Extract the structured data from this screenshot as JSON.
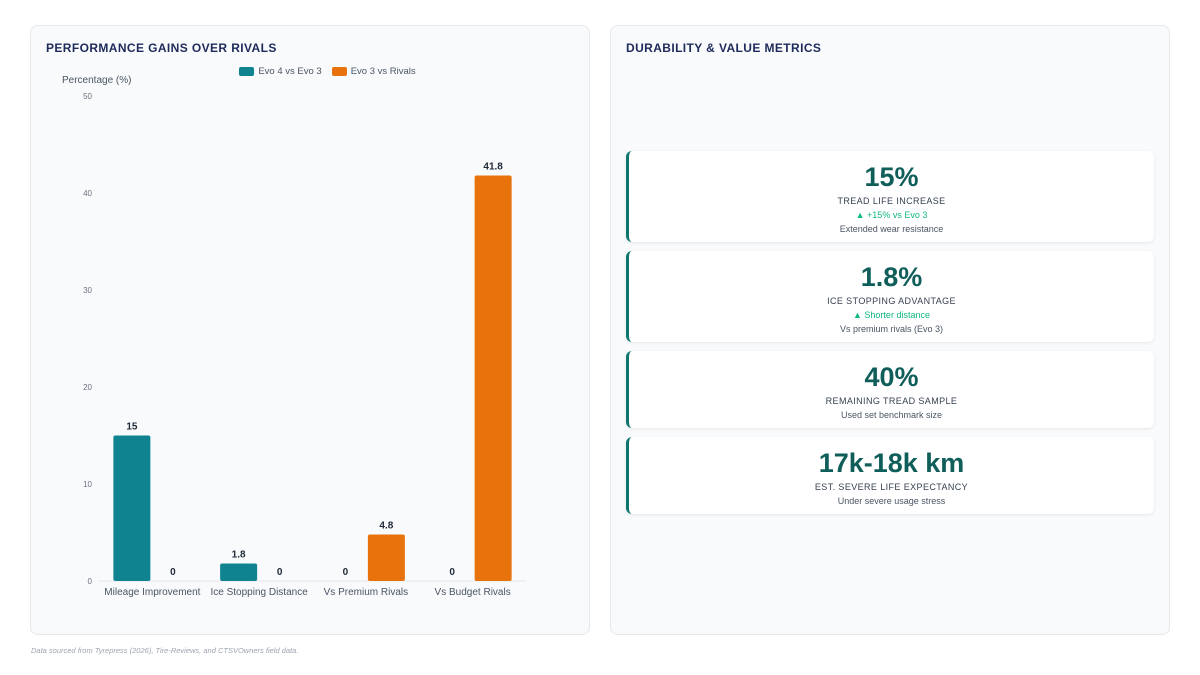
{
  "left_panel": {
    "title": "PERFORMANCE GAINS OVER RIVALS"
  },
  "right_panel": {
    "title": "DURABILITY & VALUE METRICS",
    "cards": [
      {
        "value": "15%",
        "label": "TREAD LIFE INCREASE",
        "delta": "▲ +15% vs Evo 3",
        "sub": "Extended wear resistance"
      },
      {
        "value": "1.8%",
        "label": "ICE STOPPING ADVANTAGE",
        "delta": "▲ Shorter distance",
        "sub": "Vs premium rivals (Evo 3)"
      },
      {
        "value": "40%",
        "label": "REMAINING TREAD SAMPLE",
        "delta": "",
        "sub": "Used set benchmark size"
      },
      {
        "value": "17k-18k km",
        "label": "EST. SEVERE LIFE EXPECTANCY",
        "delta": "",
        "sub": "Under severe usage stress"
      }
    ]
  },
  "footnote": "Data sourced from Tyrepress (2026), Tire-Reviews, and CTSVOwners field data.",
  "colors": {
    "teal": "#0f8490",
    "orange": "#e8720c",
    "accent": "#0f766e",
    "positive": "#10b981"
  },
  "chart_data": {
    "type": "bar",
    "categories": [
      "Mileage Improvement",
      "Ice Stopping Distance",
      "Vs Premium Rivals",
      "Vs Budget Rivals"
    ],
    "series": [
      {
        "name": "Evo 4 vs Evo 3",
        "values": [
          15,
          1.8,
          0,
          0
        ],
        "color": "#0f8490"
      },
      {
        "name": "Evo 3 vs Rivals",
        "values": [
          0,
          0,
          4.8,
          41.8
        ],
        "color": "#e8720c"
      }
    ],
    "ylabel": "Percentage (%)",
    "ylim": [
      0,
      50
    ],
    "yticks": [
      0,
      10,
      20,
      30,
      40,
      50
    ],
    "data_labels": true,
    "legend": "top"
  }
}
